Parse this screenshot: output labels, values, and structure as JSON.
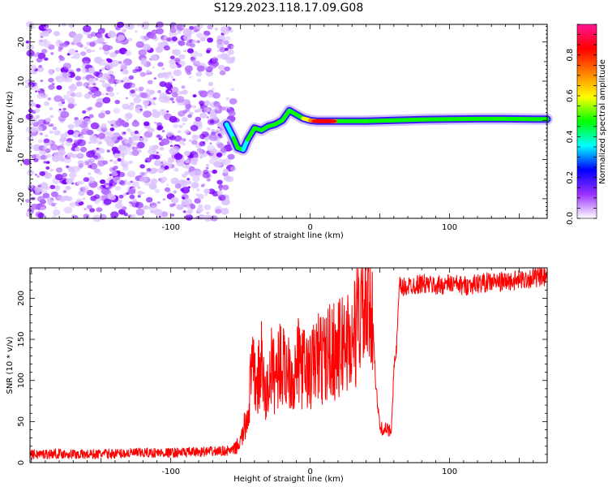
{
  "title": "S129.2023.118.17.09.G08",
  "chart_data": [
    {
      "type": "heatmap",
      "xlabel": "Height of straight line (km)",
      "ylabel": "Frequency (Hz)",
      "xlim": [
        -201,
        170
      ],
      "ylim": [
        -25,
        24.5
      ],
      "x_ticks": [
        -100,
        0,
        100
      ],
      "y_ticks": [
        -20,
        -10,
        0,
        10,
        20
      ],
      "colorbar": {
        "label": "Normalized spectral amplitude",
        "range": [
          0.0,
          0.95
        ],
        "ticks": [
          0.0,
          0.2,
          0.4,
          0.6,
          0.8
        ],
        "tick_labels": [
          "0.0",
          "0.2",
          "0.4",
          "0.6",
          "0.8"
        ],
        "colors": [
          "#ffffff",
          "#9b30ff",
          "#0000ff",
          "#00ffff",
          "#00ff00",
          "#ffff00",
          "#ff8000",
          "#ff0000",
          "#ff1493"
        ]
      },
      "noise_region": {
        "x_range": [
          -201,
          -55
        ],
        "f_range": [
          -25,
          24.5
        ],
        "level": 0.1
      },
      "signal_track": [
        {
          "x": -60,
          "f": -1.0,
          "level": 0.35
        },
        {
          "x": -55,
          "f": -4.5,
          "level": 0.45
        },
        {
          "x": -52,
          "f": -7.0,
          "level": 0.45
        },
        {
          "x": -48,
          "f": -7.5,
          "level": 0.4
        },
        {
          "x": -45,
          "f": -5.0,
          "level": 0.4
        },
        {
          "x": -40,
          "f": -2.0,
          "level": 0.45
        },
        {
          "x": -35,
          "f": -2.5,
          "level": 0.5
        },
        {
          "x": -30,
          "f": -1.5,
          "level": 0.5
        },
        {
          "x": -25,
          "f": -1.0,
          "level": 0.5
        },
        {
          "x": -20,
          "f": 0.0,
          "level": 0.55
        },
        {
          "x": -15,
          "f": 2.5,
          "level": 0.5
        },
        {
          "x": -10,
          "f": 1.5,
          "level": 0.5
        },
        {
          "x": -5,
          "f": 0.5,
          "level": 0.55
        },
        {
          "x": 0,
          "f": 0.0,
          "level": 0.6
        },
        {
          "x": 5,
          "f": -0.2,
          "level": 0.85
        },
        {
          "x": 10,
          "f": -0.2,
          "level": 0.9
        },
        {
          "x": 15,
          "f": -0.2,
          "level": 0.85
        },
        {
          "x": 20,
          "f": -0.2,
          "level": 0.5
        },
        {
          "x": 40,
          "f": -0.2,
          "level": 0.45
        },
        {
          "x": 60,
          "f": 0.0,
          "level": 0.45
        },
        {
          "x": 80,
          "f": 0.2,
          "level": 0.45
        },
        {
          "x": 100,
          "f": 0.3,
          "level": 0.45
        },
        {
          "x": 120,
          "f": 0.4,
          "level": 0.45
        },
        {
          "x": 140,
          "f": 0.4,
          "level": 0.45
        },
        {
          "x": 160,
          "f": 0.3,
          "level": 0.45
        },
        {
          "x": 170,
          "f": 0.3,
          "level": 0.45
        }
      ]
    },
    {
      "type": "line",
      "xlabel": "Height of straight line (km)",
      "ylabel": "SNR (10 * v/v)",
      "xlim": [
        -201,
        170
      ],
      "ylim": [
        0,
        237
      ],
      "x_ticks": [
        -100,
        0,
        100
      ],
      "y_ticks": [
        0,
        50,
        100,
        150,
        200
      ],
      "color": "#ff0000",
      "series": [
        {
          "x": [
            -201,
            -180,
            -160,
            -140,
            -120,
            -100,
            -80,
            -65,
            -55,
            -50,
            -45,
            -42,
            -38,
            -35,
            -32,
            -28,
            -25,
            -22,
            -18,
            -15,
            -12,
            -8,
            -5,
            0,
            5,
            10,
            15,
            20,
            25,
            30,
            33,
            36,
            40,
            43,
            45,
            47,
            50,
            55,
            58,
            60,
            62,
            64,
            66,
            70,
            80,
            90,
            100,
            110,
            120,
            130,
            140,
            150,
            160,
            170
          ],
          "y": [
            10,
            11,
            10,
            11,
            12,
            12,
            13,
            14,
            15,
            25,
            55,
            110,
            95,
            120,
            75,
            115,
            105,
            125,
            110,
            120,
            100,
            125,
            115,
            110,
            130,
            125,
            140,
            135,
            150,
            145,
            165,
            185,
            190,
            180,
            175,
            95,
            42,
            40,
            38,
            110,
            140,
            215,
            212,
            215,
            218,
            215,
            218,
            215,
            218,
            220,
            220,
            222,
            225,
            225
          ]
        }
      ]
    }
  ]
}
